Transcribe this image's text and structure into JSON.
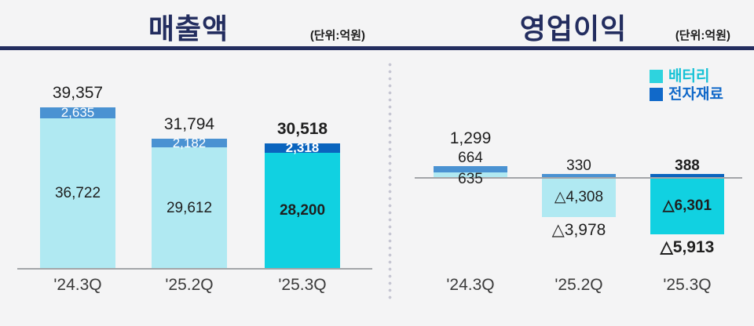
{
  "colors": {
    "background": "#F4F4F5",
    "navy": "#232D5F",
    "axis_line": "#A3A5A8",
    "separator_dot": "#C6C6D2",
    "battery_light": "#B0E9F2",
    "battery_bright": "#11D1E1",
    "materials_medium": "#4A92D2",
    "materials_dark": "#0A64BE",
    "legend_battery_swatch": "#2ED3DE",
    "legend_battery_text": "#16C2D6",
    "legend_materials_swatch": "#1169C9",
    "legend_materials_text": "#1169C9"
  },
  "chart_data": [
    {
      "type": "bar",
      "stacked": true,
      "title": "매출액",
      "unit_note": "(단위:억원)",
      "categories": [
        "'24.3Q",
        "'25.2Q",
        "'25.3Q"
      ],
      "series": [
        {
          "name": "배터리",
          "values": [
            36722,
            29612,
            28200
          ],
          "labels": [
            "36,722",
            "29,612",
            "28,200"
          ]
        },
        {
          "name": "전자재료",
          "values": [
            2635,
            2182,
            2318
          ],
          "labels": [
            "2,635",
            "2,182",
            "2,318"
          ]
        }
      ],
      "totals": {
        "values": [
          39357,
          31794,
          30518
        ],
        "labels": [
          "39,357",
          "31,794",
          "30,518"
        ]
      },
      "emphasized_category_index": 2,
      "layout": {
        "legend": false,
        "grid": false,
        "value_axis_hidden": true
      }
    },
    {
      "type": "bar",
      "stacked": true,
      "title": "영업이익",
      "unit_note": "(단위:억원)",
      "categories": [
        "'24.3Q",
        "'25.2Q",
        "'25.3Q"
      ],
      "series": [
        {
          "name": "배터리",
          "values": [
            635,
            -4308,
            -6301
          ],
          "labels": [
            "635",
            "△4,308",
            "△6,301"
          ]
        },
        {
          "name": "전자재료",
          "values": [
            664,
            330,
            388
          ],
          "labels": [
            "664",
            "330",
            "388"
          ]
        }
      ],
      "totals": {
        "values": [
          1299,
          -3978,
          -5913
        ],
        "labels": [
          "1,299",
          "△3,978",
          "△5,913"
        ]
      },
      "emphasized_category_index": 2,
      "layout": {
        "legend": true,
        "legend_position": "top-right",
        "grid": false,
        "zero_line": true,
        "value_axis_hidden": true
      }
    }
  ]
}
